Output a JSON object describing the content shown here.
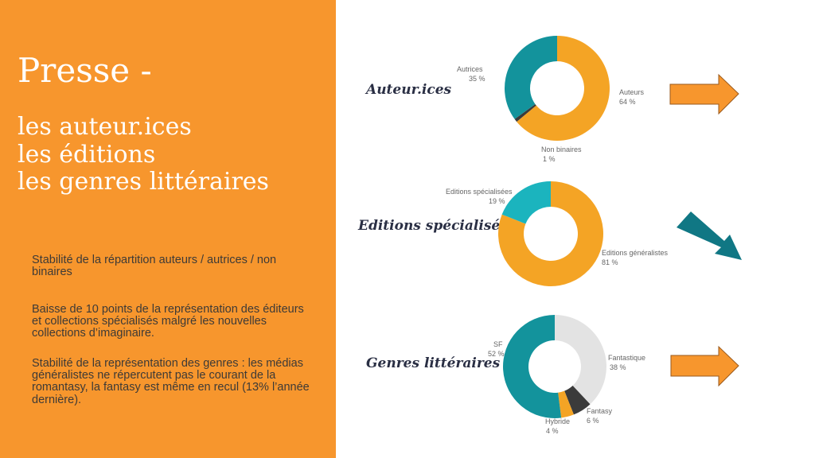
{
  "title": "Presse -",
  "subtitle": [
    "les auteur.ices",
    "les éditions",
    "les genres littéraires"
  ],
  "notes": [
    "Stabilité de la répartition auteurs / autrices / non binaires",
    "Baisse de 10 points de la représentation des éditeurs et collections spécialisés malgré les nouvelles collections d’imaginaire.",
    "Stabilité  de la représentation des genres : les médias généralistes ne répercutent pas le courant de la romantasy, la fantasy est même en recul (13% l’année dernière)."
  ],
  "colors": {
    "panel": "#f7962d",
    "orange": "#f4a425",
    "teal": "#13939c",
    "light_teal": "#1bb4be",
    "dark": "#3b3b3b",
    "light_gray": "#e3e3e3",
    "arrow_orange": "#f7962d",
    "arrow_teal": "#107784"
  },
  "chart_data": [
    {
      "type": "pie",
      "label": "Auteur.ices",
      "slices": [
        {
          "name": "Auteurs",
          "value": 64,
          "text": "64 %",
          "color": "#f4a425"
        },
        {
          "name": "Non binaires",
          "value": 1,
          "text": "1 %",
          "color": "#3b3b3b"
        },
        {
          "name": "Autrices",
          "value": 35,
          "text": "35 %",
          "color": "#13939c"
        }
      ],
      "trend_icon": "right-arrow-icon"
    },
    {
      "type": "pie",
      "label": "Editions spécialisées",
      "slices": [
        {
          "name": "Editions généralistes",
          "value": 81,
          "text": "81 %",
          "color": "#f4a425"
        },
        {
          "name": "Editions spécialisées",
          "value": 19,
          "text": "19 %",
          "color": "#1bb4be"
        }
      ],
      "trend_icon": "down-right-arrow-icon"
    },
    {
      "type": "pie",
      "label": "Genres littéraires",
      "slices": [
        {
          "name": "Fantastique",
          "value": 38,
          "text": "38 %",
          "color": "#e3e3e3"
        },
        {
          "name": "Fantasy",
          "value": 6,
          "text": "6 %",
          "color": "#3b3b3b"
        },
        {
          "name": "Hybride",
          "value": 4,
          "text": "4 %",
          "color": "#f4a425"
        },
        {
          "name": "SF",
          "value": 52,
          "text": "52 %",
          "color": "#13939c"
        }
      ],
      "trend_icon": "right-arrow-icon"
    }
  ]
}
